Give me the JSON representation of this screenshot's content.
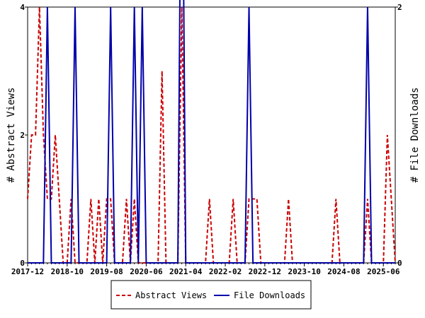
{
  "chart_data": {
    "type": "line",
    "x_tick_labels": [
      "2017-12",
      "2018-10",
      "2019-08",
      "2020-06",
      "2021-04",
      "2022-02",
      "2022-12",
      "2023-10",
      "2024-08",
      "2025-06"
    ],
    "n_months": 94,
    "ylim_left": [
      0,
      4
    ],
    "ylim_right": [
      0,
      2
    ],
    "y_ticks_left": [
      "0",
      "2",
      "4"
    ],
    "y_ticks_right": [
      "0",
      "2"
    ],
    "ylabel_left": "# Abstract Views",
    "ylabel_right": "# File Downloads",
    "legend_position": "bottom",
    "colors": {
      "abstract": "#cc0000",
      "downloads": "#0000aa"
    },
    "series": [
      {
        "name": "Abstract Views",
        "axis": "left",
        "style": "dashed",
        "values": [
          1,
          2,
          2,
          4,
          2,
          1,
          1,
          2,
          1,
          0,
          0,
          1,
          0,
          0,
          0,
          0,
          1,
          0,
          1,
          0,
          1,
          1,
          0,
          0,
          0,
          1,
          0,
          1,
          0,
          0,
          0,
          0,
          0,
          0,
          3,
          0,
          0,
          0,
          0,
          4,
          0,
          0,
          0,
          0,
          0,
          0,
          1,
          0,
          0,
          0,
          0,
          0,
          1,
          0,
          0,
          0,
          1,
          1,
          1,
          0,
          0,
          0,
          0,
          0,
          0,
          0,
          1,
          0,
          0,
          0,
          0,
          0,
          0,
          0,
          0,
          0,
          0,
          0,
          1,
          0,
          0,
          0,
          0,
          0,
          0,
          0,
          1,
          0,
          0,
          0,
          0,
          2,
          1,
          0
        ]
      },
      {
        "name": "File Downloads",
        "axis": "right",
        "style": "solid",
        "values": [
          0,
          0,
          0,
          0,
          0,
          2,
          0,
          0,
          0,
          0,
          0,
          0,
          2,
          0,
          0,
          0,
          0,
          0,
          0,
          0,
          0,
          2,
          0,
          0,
          0,
          0,
          0,
          2,
          0,
          2,
          0,
          0,
          0,
          0,
          0,
          0,
          0,
          0,
          0,
          4,
          0,
          0,
          0,
          0,
          0,
          0,
          0,
          0,
          0,
          0,
          0,
          0,
          0,
          0,
          0,
          0,
          2,
          0,
          0,
          0,
          0,
          0,
          0,
          0,
          0,
          0,
          0,
          0,
          0,
          0,
          0,
          0,
          0,
          0,
          0,
          0,
          0,
          0,
          0,
          0,
          0,
          0,
          0,
          0,
          0,
          0,
          2,
          0,
          0,
          0,
          0,
          0,
          0,
          0
        ]
      }
    ]
  }
}
